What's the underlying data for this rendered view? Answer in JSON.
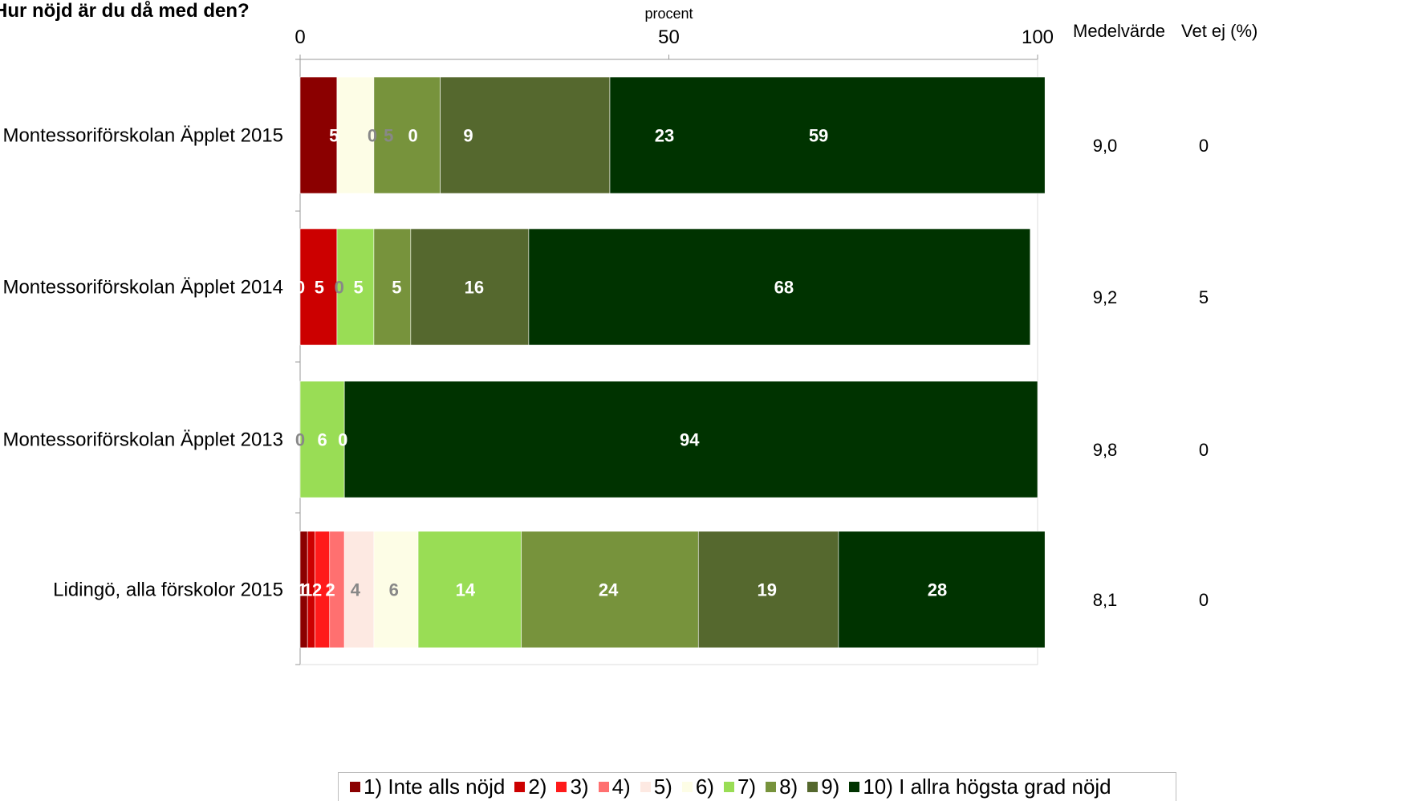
{
  "title": "Hur nöjd är du då med den?",
  "chart_data": {
    "type": "bar",
    "orientation": "horizontal",
    "stacked": true,
    "xlabel": "procent",
    "xlim": [
      0,
      100
    ],
    "ticks": [
      "0",
      "50",
      "100"
    ],
    "categories": [
      "Montessoriförskolan Äpplet 2015",
      "Montessoriförskolan Äpplet 2014",
      "Montessoriförskolan Äpplet 2013",
      "Lidingö, alla förskolor 2015"
    ],
    "series": [
      {
        "name": "1) Inte alls nöjd",
        "color": "#8b0000",
        "values": [
          5,
          0,
          0,
          1
        ]
      },
      {
        "name": "2)",
        "color": "#cc0000",
        "values": [
          0,
          5,
          0,
          1
        ]
      },
      {
        "name": "3)",
        "color": "#ff1a1a",
        "values": [
          0,
          0,
          0,
          2
        ]
      },
      {
        "name": "4)",
        "color": "#ff7070",
        "values": [
          0,
          0,
          0,
          2
        ]
      },
      {
        "name": "5)",
        "color": "#fde9e2",
        "values": [
          0,
          0,
          0,
          4
        ]
      },
      {
        "name": "6)",
        "color": "#fdfde6",
        "values": [
          5,
          0,
          0,
          6
        ]
      },
      {
        "name": "7)",
        "color": "#99dd55",
        "values": [
          0,
          5,
          6,
          14
        ]
      },
      {
        "name": "8)",
        "color": "#77933c",
        "values": [
          9,
          5,
          0,
          24
        ]
      },
      {
        "name": "9)",
        "color": "#55682e",
        "values": [
          23,
          16,
          0,
          19
        ]
      },
      {
        "name": "10) I allra högsta grad nöjd",
        "color": "#003300",
        "values": [
          59,
          68,
          94,
          28
        ]
      }
    ],
    "data_labels": [
      [
        {
          "text": "5",
          "pos": 4.6,
          "color": "#ffffff"
        },
        {
          "text": "0",
          "pos": 9.8,
          "color": "#888888"
        },
        {
          "text": "5",
          "pos": 12.0,
          "color": "#888888"
        },
        {
          "text": "0",
          "pos": 15.3,
          "color": "#ffffff"
        },
        {
          "text": "9",
          "pos": 22.8,
          "color": "#ffffff"
        },
        {
          "text": "23",
          "pos": 49.4,
          "color": "#ffffff"
        },
        {
          "text": "59",
          "pos": 70.3,
          "color": "#ffffff"
        }
      ],
      [
        {
          "text": "0",
          "pos": 0.0,
          "color": "#ffffff"
        },
        {
          "text": "5",
          "pos": 2.6,
          "color": "#ffffff"
        },
        {
          "text": "0",
          "pos": 5.3,
          "color": "#888888"
        },
        {
          "text": "5",
          "pos": 7.9,
          "color": "#ffffff"
        },
        {
          "text": "5",
          "pos": 13.1,
          "color": "#ffffff"
        },
        {
          "text": "16",
          "pos": 23.6,
          "color": "#ffffff"
        },
        {
          "text": "68",
          "pos": 65.6,
          "color": "#ffffff"
        }
      ],
      [
        {
          "text": "0",
          "pos": 0.0,
          "color": "#888888"
        },
        {
          "text": "6",
          "pos": 3.0,
          "color": "#ffffff"
        },
        {
          "text": "0",
          "pos": 5.8,
          "color": "#ffffff"
        },
        {
          "text": "94",
          "pos": 52.8,
          "color": "#ffffff"
        }
      ],
      [
        {
          "text": "1",
          "pos": 0.3,
          "color": "#ffffff"
        },
        {
          "text": "1",
          "pos": 1.0,
          "color": "#ffffff"
        },
        {
          "text": "2",
          "pos": 2.3,
          "color": "#ffffff"
        },
        {
          "text": "2",
          "pos": 4.1,
          "color": "#ffffff"
        },
        {
          "text": "4",
          "pos": 7.5,
          "color": "#888888"
        },
        {
          "text": "6",
          "pos": 12.7,
          "color": "#888888"
        },
        {
          "text": "14",
          "pos": 22.4,
          "color": "#ffffff"
        },
        {
          "text": "24",
          "pos": 41.8,
          "color": "#ffffff"
        },
        {
          "text": "19",
          "pos": 63.3,
          "color": "#ffffff"
        },
        {
          "text": "28",
          "pos": 86.4,
          "color": "#ffffff"
        }
      ]
    ],
    "legend_position": "bottom",
    "grid": false
  },
  "side_columns": {
    "mean_header": "Medelvärde",
    "dontknow_header": "Vet ej (%)",
    "mean_values": [
      "9,0",
      "9,2",
      "9,8",
      "8,1"
    ],
    "dontknow_values": [
      "0",
      "5",
      "0",
      "0"
    ]
  }
}
